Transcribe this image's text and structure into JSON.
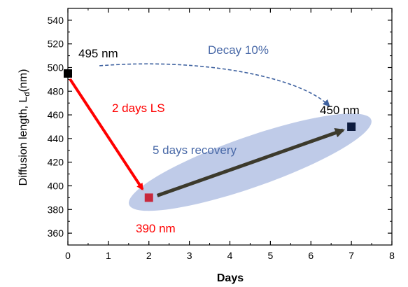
{
  "chart_data": {
    "type": "scatter",
    "title": "",
    "xlabel": "Days",
    "ylabel": "Diffusion length, L",
    "ylabel_sub": "d",
    "ylabel_unit": "(nm)",
    "xlim": [
      0,
      8
    ],
    "ylim": [
      350,
      550
    ],
    "x_ticks": [
      "0",
      "1",
      "2",
      "3",
      "4",
      "5",
      "6",
      "7",
      "8"
    ],
    "y_ticks": [
      "360",
      "380",
      "400",
      "420",
      "440",
      "460",
      "480",
      "500",
      "520",
      "540"
    ],
    "grid": false,
    "points": [
      {
        "x": 0,
        "y": 495,
        "color": "#000000"
      },
      {
        "x": 2,
        "y": 390,
        "color": "#c8283c"
      },
      {
        "x": 7,
        "y": 450,
        "color": "#0d1b3e"
      }
    ],
    "annotations": {
      "initial_value": "495 nm",
      "ls_value": "390 nm",
      "recovered_value": "450 nm",
      "light_soaking": "2 days LS",
      "recovery": "5 days recovery",
      "decay": "Decay 10%"
    },
    "colors": {
      "ls_arrow": "#ff0000",
      "recovery_arrow": "#3c3a2c",
      "decay_arrow": "#3f62a0",
      "ellipse_fill": "#b4c2e4",
      "annotation_blue": "#4a6aa8",
      "annotation_red": "#ff0000"
    }
  }
}
